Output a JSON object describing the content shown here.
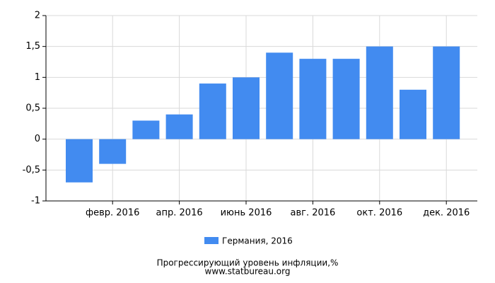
{
  "chart_data": {
    "type": "bar",
    "title": "Прогрессирующий уровень инфляции,%",
    "source": "www.statbureau.org",
    "categories": [
      null,
      "февр. 2016",
      null,
      "апр. 2016",
      null,
      "июнь 2016",
      null,
      "авг. 2016",
      null,
      "окт. 2016",
      null,
      "дек. 2016"
    ],
    "series": [
      {
        "name": "Германия, 2016",
        "color": "#428bf0",
        "values": [
          -0.7,
          -0.4,
          0.3,
          0.4,
          0.9,
          1.0,
          1.4,
          1.3,
          1.3,
          1.5,
          0.8,
          1.5
        ]
      }
    ],
    "ylim": [
      -1,
      2
    ],
    "yticks": [
      -1,
      {
        "value": -0.5,
        "label": "-0,5"
      },
      0,
      {
        "value": 0.5,
        "label": "0,5"
      },
      1,
      {
        "value": 1.5,
        "label": "1,5"
      },
      2
    ],
    "grid": true
  }
}
